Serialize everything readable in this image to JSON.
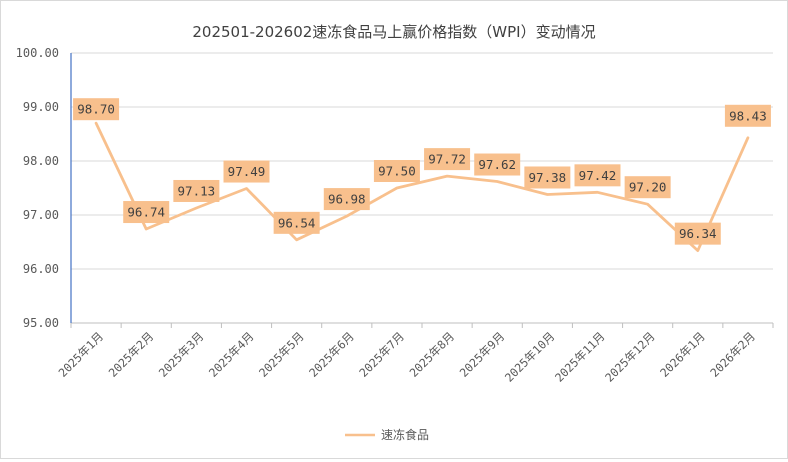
{
  "chart_data": {
    "type": "line",
    "title": "202501-202602速冻食品马上赢价格指数（WPI）变动情况",
    "xlabel": "",
    "ylabel": "",
    "ylim": [
      95.0,
      100.0
    ],
    "ytick_labels": [
      "95.00",
      "96.00",
      "97.00",
      "98.00",
      "99.00",
      "100.00"
    ],
    "ytick_values": [
      95,
      96,
      97,
      98,
      99,
      100
    ],
    "categories": [
      "2025年1月",
      "2025年2月",
      "2025年3月",
      "2025年4月",
      "2025年5月",
      "2025年6月",
      "2025年7月",
      "2025年8月",
      "2025年9月",
      "2025年10月",
      "2025年11月",
      "2025年12月",
      "2026年1月",
      "2026年2月"
    ],
    "series": [
      {
        "name": "速冻食品",
        "color": "#F8C08D",
        "values": [
          98.7,
          96.74,
          97.13,
          97.49,
          96.54,
          96.98,
          97.5,
          97.72,
          97.62,
          97.38,
          97.42,
          97.2,
          96.34,
          98.43
        ],
        "labels": [
          "98.70",
          "96.74",
          "97.13",
          "97.49",
          "96.54",
          "96.98",
          "97.50",
          "97.72",
          "97.62",
          "97.38",
          "97.42",
          "97.20",
          "96.34",
          "98.43"
        ]
      }
    ],
    "grid": true,
    "legend": "bottom-center",
    "label_box_color": "#F8C08D",
    "axis_color": "#4472C4"
  }
}
